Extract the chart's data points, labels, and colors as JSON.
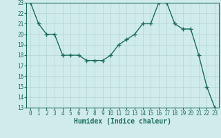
{
  "x": [
    0,
    1,
    2,
    3,
    4,
    5,
    6,
    7,
    8,
    9,
    10,
    11,
    12,
    13,
    14,
    15,
    16,
    17,
    18,
    19,
    20,
    21,
    22,
    23
  ],
  "y": [
    23,
    21,
    20,
    20,
    18,
    18,
    18,
    17.5,
    17.5,
    17.5,
    18,
    19,
    19.5,
    20,
    21,
    21,
    23,
    23,
    21,
    20.5,
    20.5,
    18,
    15,
    13
  ],
  "line_color": "#1a6b5a",
  "marker": "+",
  "marker_size": 4,
  "linewidth": 1.0,
  "background_color": "#d0ecea",
  "grid_major_color": "#b0d4d0",
  "grid_minor_color": "#c0deda",
  "xlabel": "Humidex (Indice chaleur)",
  "ylabel": "",
  "ylim": [
    13,
    23
  ],
  "xlim": [
    0,
    23
  ],
  "yticks": [
    13,
    14,
    15,
    16,
    17,
    18,
    19,
    20,
    21,
    22,
    23
  ],
  "xticks": [
    0,
    1,
    2,
    3,
    4,
    5,
    6,
    7,
    8,
    9,
    10,
    11,
    12,
    13,
    14,
    15,
    16,
    17,
    18,
    19,
    20,
    21,
    22,
    23
  ],
  "tick_fontsize": 5.5,
  "xlabel_fontsize": 7,
  "text_color": "#1a6b5a",
  "spine_color": "#1a6b5a"
}
